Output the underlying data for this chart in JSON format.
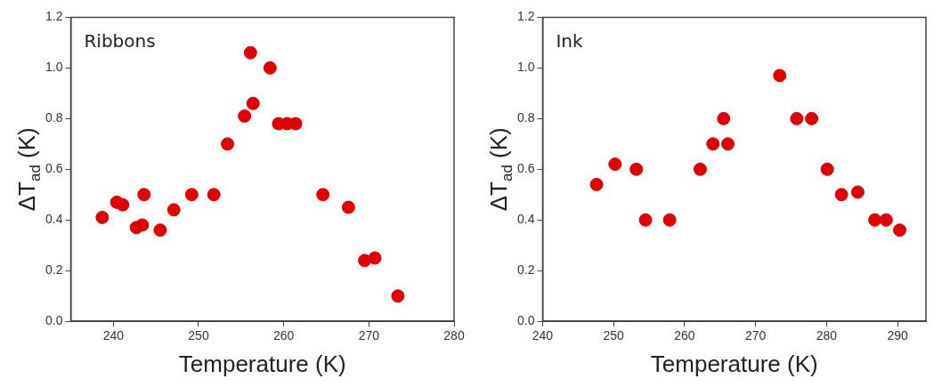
{
  "chart_data": [
    {
      "type": "scatter",
      "xlabel": "Temperature (K)",
      "ylabel": "ΔT$_{ad}$ (K)",
      "annotations": [
        "Ribbons"
      ],
      "marker": "circle",
      "grid": false,
      "legend": false,
      "xlim": [
        235,
        280
      ],
      "xticks": [
        240,
        250,
        260,
        270,
        280
      ],
      "ylim": [
        0,
        1.2
      ],
      "yticks": [
        {
          "value": 0,
          "label": "0.0"
        },
        0.2,
        0.4,
        0.6,
        0.8,
        {
          "value": 1,
          "label": "1.0"
        },
        {
          "value": 1.2,
          "label": "1.2"
        }
      ],
      "series": [
        {
          "color": "#e00000",
          "x": [
            238.7,
            240.4,
            241.1,
            242.7,
            243.4,
            243.6,
            245.5,
            247.1,
            249.2,
            251.8,
            253.4,
            255.4,
            256.1,
            256.4,
            258.4,
            259.4,
            260.4,
            261.4,
            264.6,
            267.6,
            269.5,
            270.7,
            273.4
          ],
          "values": [
            0.41,
            0.47,
            0.46,
            0.37,
            0.38,
            0.5,
            0.36,
            0.44,
            0.5,
            0.5,
            0.7,
            0.81,
            1.06,
            0.86,
            1.0,
            0.78,
            0.78,
            0.78,
            0.5,
            0.45,
            0.24,
            0.25,
            0.1
          ]
        }
      ]
    },
    {
      "type": "scatter",
      "xlabel": "Temperature (K)",
      "ylabel": "ΔT$_{ad}$ (K)",
      "annotations": [
        "Ink"
      ],
      "marker": "circle",
      "grid": false,
      "legend": false,
      "xlim": [
        240,
        294
      ],
      "xticks": [
        240,
        250,
        260,
        270,
        280,
        290
      ],
      "ylim": [
        0,
        1.2
      ],
      "yticks": [
        {
          "value": 0,
          "label": "0.0"
        },
        0.2,
        0.4,
        0.6,
        0.8,
        {
          "value": 1,
          "label": "1.0"
        },
        {
          "value": 1.2,
          "label": "1.2"
        }
      ],
      "series": [
        {
          "color": "#e00000",
          "x": [
            247.6,
            250.2,
            253.2,
            254.5,
            257.9,
            262.2,
            264.0,
            265.5,
            266.1,
            273.4,
            275.8,
            277.9,
            280.1,
            282.1,
            284.4,
            286.8,
            288.4,
            290.3
          ],
          "values": [
            0.54,
            0.62,
            0.6,
            0.4,
            0.4,
            0.6,
            0.7,
            0.8,
            0.7,
            0.97,
            0.8,
            0.8,
            0.6,
            0.5,
            0.51,
            0.4,
            0.4,
            0.36
          ]
        }
      ]
    }
  ]
}
